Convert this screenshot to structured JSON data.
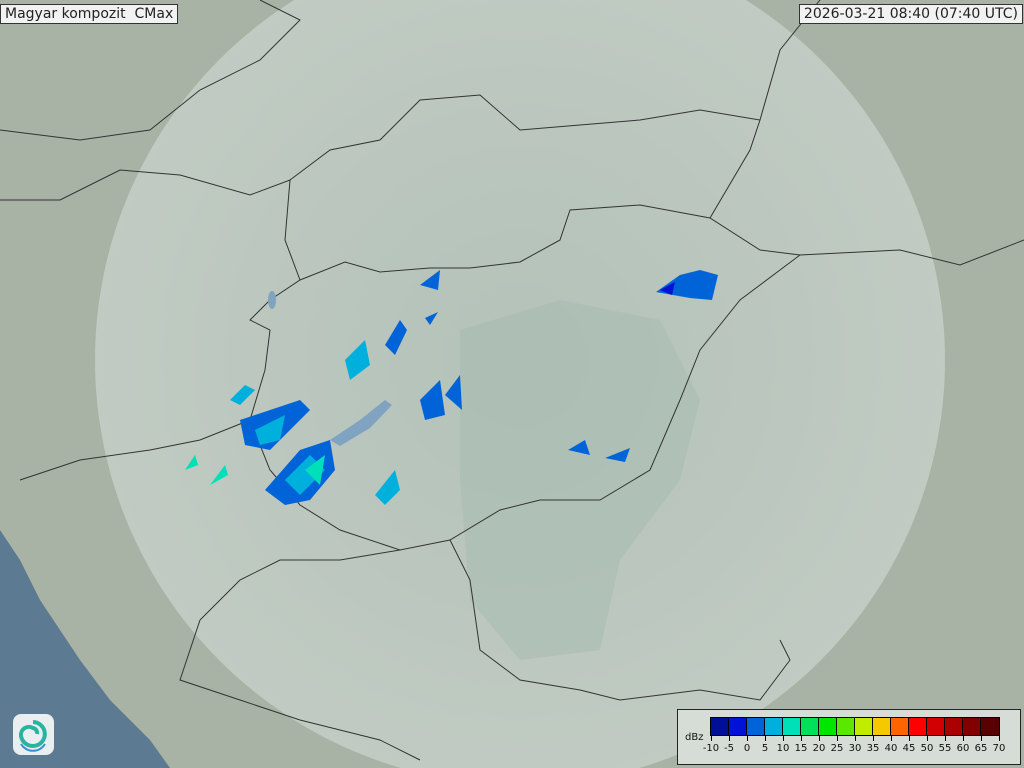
{
  "header": {
    "title": "Magyar kompozit  CMax",
    "timestamp": "2026-03-21 08:40 (07:40 UTC)"
  },
  "logo": {
    "icon": "swirl-logo-icon"
  },
  "legend": {
    "unit": "dBz",
    "ticks": [
      "-10",
      "-5",
      "0",
      "5",
      "10",
      "15",
      "20",
      "25",
      "30",
      "35",
      "40",
      "45",
      "50",
      "55",
      "60",
      "65",
      "70"
    ],
    "colors": [
      "#000f96",
      "#0012d8",
      "#0064d8",
      "#00b0dc",
      "#00e0b8",
      "#00e05a",
      "#00e600",
      "#5ae800",
      "#c0ec00",
      "#f6c800",
      "#ff6400",
      "#ff0000",
      "#d20000",
      "#aa0000",
      "#820000",
      "#5a0000"
    ]
  },
  "colors": {
    "sea": "#5c7a91",
    "land": "#a9b3a6",
    "radar_coverage": "#c4d0c8",
    "borders": "#333333"
  }
}
